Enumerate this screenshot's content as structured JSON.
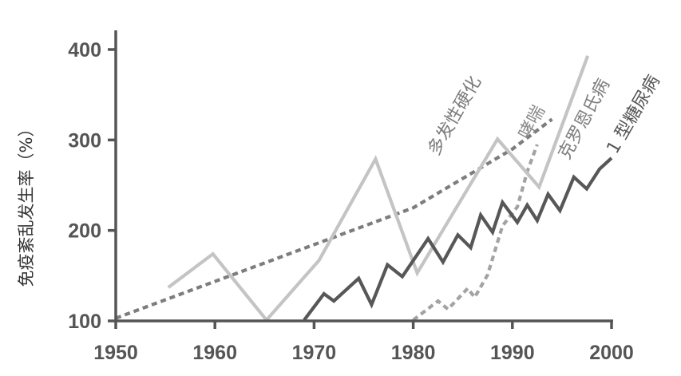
{
  "chart_data": {
    "type": "line",
    "title": "",
    "xlabel": "",
    "ylabel": "免疫紊乱发生率（%）",
    "xlim": [
      1950,
      2000
    ],
    "ylim": [
      100,
      400
    ],
    "x_ticks": [
      "1950",
      "1960",
      "1970",
      "1980",
      "1990",
      "2000"
    ],
    "y_ticks": [
      "100",
      "200",
      "300",
      "400"
    ],
    "grid": false,
    "legend": "none",
    "series": [
      {
        "name": "多发性硬化",
        "style": "dashed",
        "color": "#7d7d7d",
        "x": [
          1950,
          1980,
          1990,
          1994
        ],
        "y": [
          103,
          225,
          290,
          323
        ]
      },
      {
        "name": "哮喘",
        "style": "dashed",
        "color": "#a3a3a3",
        "x": [
          1980,
          1982.5,
          1983.5,
          1985.5,
          1986.2,
          1987.5,
          1989,
          1990.5,
          1991.5,
          1992.5
        ],
        "y": [
          101,
          122,
          113,
          136,
          126,
          151,
          205,
          226,
          265,
          295
        ]
      },
      {
        "name": "克罗恩氏病",
        "style": "solid",
        "color": "#c4c4c4",
        "x": [
          1955.3,
          1959.8,
          1965.2,
          1970.5,
          1976.2,
          1980.4,
          1988.5,
          1992.7,
          1997.6
        ],
        "y": [
          137,
          174,
          101,
          167,
          279,
          153,
          301,
          248,
          393
        ]
      },
      {
        "name": "1 型糖尿病",
        "style": "solid",
        "color": "#575757",
        "x": [
          1969,
          1971,
          1972,
          1974.5,
          1975.8,
          1977.4,
          1978.9,
          1981.5,
          1983,
          1984.5,
          1985.8,
          1986.8,
          1988,
          1989,
          1990.5,
          1991.5,
          1992.5,
          1993.6,
          1994.8,
          1996.2,
          1997.5,
          1998.8,
          2000
        ],
        "y": [
          101,
          130,
          122,
          147,
          118,
          162,
          149,
          191,
          165,
          195,
          181,
          217,
          198,
          231,
          209,
          228,
          211,
          240,
          222,
          259,
          246,
          268,
          280
        ]
      }
    ],
    "annotations": [
      {
        "text": "多发性硬化",
        "series": "多发性硬化"
      },
      {
        "text": "哮喘",
        "series": "哮喘"
      },
      {
        "text": "克罗恩氏病",
        "series": "克罗恩氏病"
      },
      {
        "text": "1 型糖尿病",
        "series": "1 型糖尿病"
      }
    ]
  }
}
